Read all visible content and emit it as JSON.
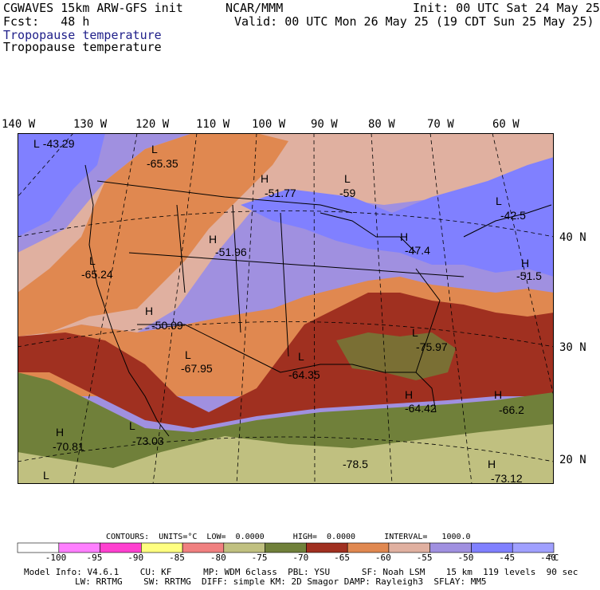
{
  "header": {
    "model_line": "CGWAVES 15km ARW-GFS init",
    "fcst_line": "Fcst:   48 h",
    "field_line1": "Tropopause temperature",
    "field_line2": "Tropopause temperature",
    "org": "NCAR/MMM",
    "init_line": "Init: 00 UTC Sat 24 May 25",
    "valid_line": "Valid: 00 UTC Mon 26 May 25 (19 CDT Sun 25 May 25)"
  },
  "longitude_labels": [
    "140 W",
    "130 W",
    "120 W",
    "110 W",
    "100 W",
    "90 W",
    "80 W",
    "70 W",
    "60 W"
  ],
  "latitude_labels": [
    "40 N",
    "30 N",
    "20 N"
  ],
  "map_labels": [
    {
      "mark": "L",
      "value": "-43.29"
    },
    {
      "mark": "L",
      "value": "-65.35"
    },
    {
      "mark": "H",
      "value": "-51.77"
    },
    {
      "mark": "L",
      "value": "-59"
    },
    {
      "mark": "L",
      "value": "-42.5"
    },
    {
      "mark": "H",
      "value": "-51.96"
    },
    {
      "mark": "H",
      "value": "-47.4"
    },
    {
      "mark": "L",
      "value": "-65.24"
    },
    {
      "mark": "H",
      "value": "-51.5"
    },
    {
      "mark": "H",
      "value": "-50.09"
    },
    {
      "mark": "L",
      "value": "-75.97"
    },
    {
      "mark": "L",
      "value": "-67.95"
    },
    {
      "mark": "L",
      "value": "-64.35"
    },
    {
      "mark": "H",
      "value": "-66.2"
    },
    {
      "mark": "H",
      "value": "-64.42"
    },
    {
      "mark": "H",
      "value": "-70.81"
    },
    {
      "mark": "L",
      "value": "-73.03"
    },
    {
      "mark": "",
      "value": "-78.5"
    },
    {
      "mark": "H",
      "value": "-73.12"
    },
    {
      "mark": "L",
      "value": ""
    }
  ],
  "contours": {
    "line": "CONTOURS:  UNITS=°C  LOW=  0.0000      HIGH=  0.0000      INTERVAL=   1000.0"
  },
  "colorbar": {
    "labels": [
      "-100",
      "-95",
      "-90",
      "-85",
      "-80",
      "-75",
      "-70",
      "-65",
      "-60",
      "-55",
      "-50",
      "-45",
      "-40"
    ],
    "unit": "°C",
    "colors": [
      "#ffffff",
      "#ff7fff",
      "#ff40d0",
      "#ffff80",
      "#f08080",
      "#c0c080",
      "#70803a",
      "#a03020",
      "#e08850",
      "#e0b0a0",
      "#a090e0",
      "#8080ff",
      "#a0a0ff"
    ]
  },
  "footer": {
    "line1": "Model Info: V4.6.1    CU: KF      MP: WDM 6class  PBL: YSU      SF: Noah LSM    15 km  119 levels  90 sec",
    "line2": "LW: RRTMG    SW: RRTMG  DIFF: simple KM: 2D Smagor DAMP: Rayleigh3  SFLAY: MM5"
  }
}
